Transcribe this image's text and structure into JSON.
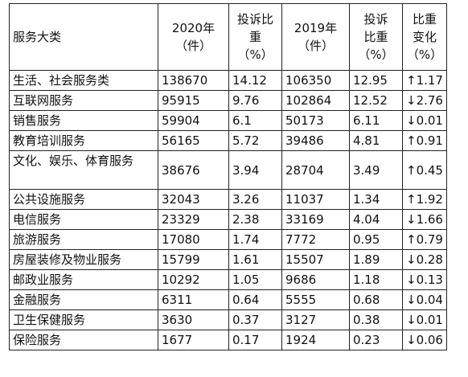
{
  "table": {
    "headers": {
      "category": "服务大类",
      "count_2020": "2020年\n（件）",
      "share_2020": "投诉比\n重\n（%）",
      "count_2019": "2019年\n（件）",
      "share_2019": "投诉\n比重\n（%）",
      "change": "比重\n变化\n（%）"
    },
    "rows": [
      {
        "category": "生活、社会服务类",
        "count_2020": "138670",
        "share_2020": "14.12",
        "count_2019": "106350",
        "share_2019": "12.95",
        "change": "↑1.17"
      },
      {
        "category": "互联网服务",
        "count_2020": "95915",
        "share_2020": "9.76",
        "count_2019": "102864",
        "share_2019": "12.52",
        "change": "↓2.76"
      },
      {
        "category": "销售服务",
        "count_2020": "59904",
        "share_2020": "6.1",
        "count_2019": "50173",
        "share_2019": "6.11",
        "change": "↓0.01"
      },
      {
        "category": "教育培训服务",
        "count_2020": "56165",
        "share_2020": "5.72",
        "count_2019": "39486",
        "share_2019": "4.81",
        "change": "↑0.91"
      },
      {
        "category": "文化、娱乐、体育服务",
        "count_2020": "38676",
        "share_2020": "3.94",
        "count_2019": "28704",
        "share_2019": "3.49",
        "change": "↑0.45"
      },
      {
        "category": "公共设施服务",
        "count_2020": "32043",
        "share_2020": "3.26",
        "count_2019": "11037",
        "share_2019": "1.34",
        "change": "↑1.92"
      },
      {
        "category": "电信服务",
        "count_2020": "23329",
        "share_2020": "2.38",
        "count_2019": "33169",
        "share_2019": "4.04",
        "change": "↓1.66"
      },
      {
        "category": "旅游服务",
        "count_2020": "17080",
        "share_2020": "1.74",
        "count_2019": "7772",
        "share_2019": "0.95",
        "change": "↑0.79"
      },
      {
        "category": "房屋装修及物业服务",
        "count_2020": "15799",
        "share_2020": "1.61",
        "count_2019": "15507",
        "share_2019": "1.89",
        "change": "↓0.28"
      },
      {
        "category": "邮政业服务",
        "count_2020": "10292",
        "share_2020": "1.05",
        "count_2019": "9686",
        "share_2019": "1.18",
        "change": "↓0.13"
      },
      {
        "category": "金融服务",
        "count_2020": "6311",
        "share_2020": "0.64",
        "count_2019": "5555",
        "share_2019": "0.68",
        "change": "↓0.04"
      },
      {
        "category": "卫生保健服务",
        "count_2020": "3630",
        "share_2020": "0.37",
        "count_2019": "3127",
        "share_2019": "0.38",
        "change": "↓0.01"
      },
      {
        "category": "保险服务",
        "count_2020": "1677",
        "share_2020": "0.17",
        "count_2019": "1924",
        "share_2019": "0.23",
        "change": "↓0.06"
      }
    ]
  }
}
